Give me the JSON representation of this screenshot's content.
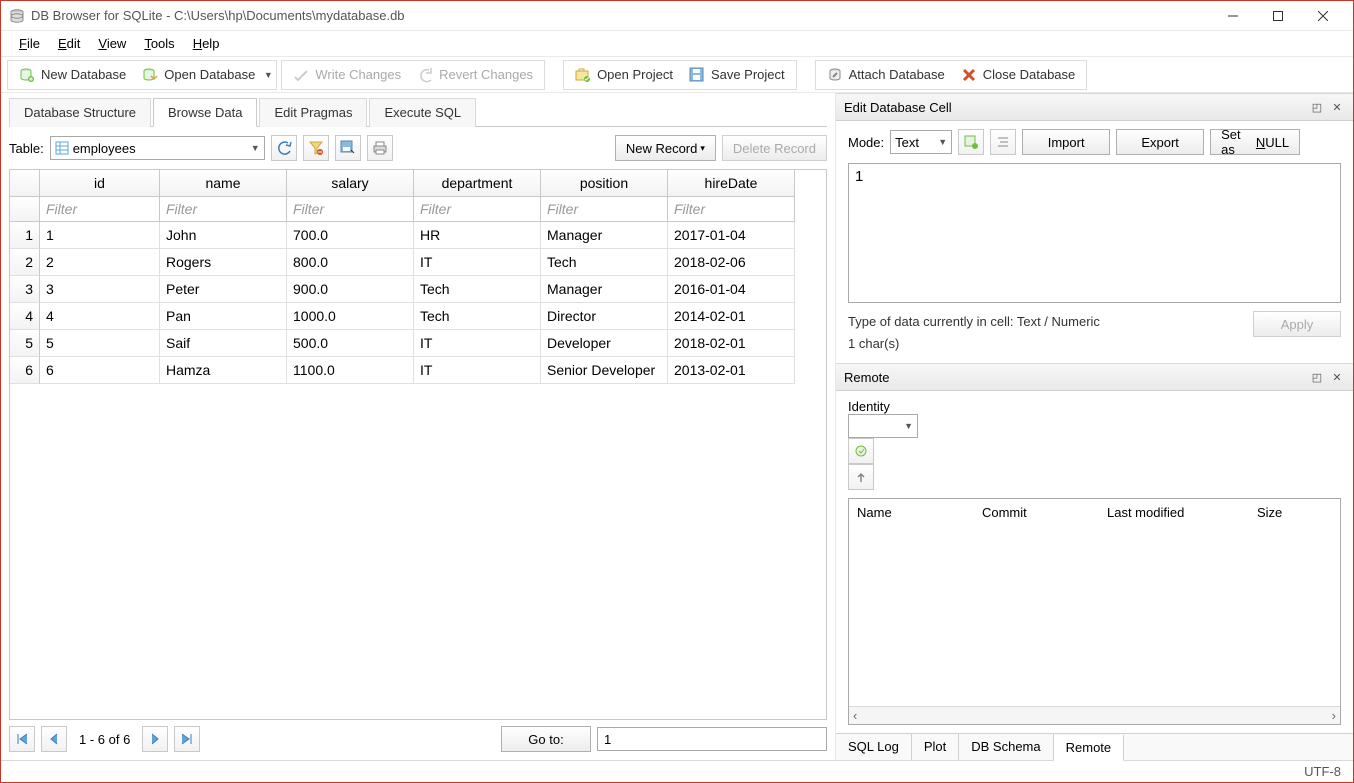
{
  "window": {
    "title": "DB Browser for SQLite - C:\\Users\\hp\\Documents\\mydatabase.db"
  },
  "menus": {
    "file": "File",
    "edit": "Edit",
    "view": "View",
    "tools": "Tools",
    "help": "Help"
  },
  "toolbar": {
    "new_db": "New Database",
    "open_db": "Open Database",
    "write_changes": "Write Changes",
    "revert_changes": "Revert Changes",
    "open_project": "Open Project",
    "save_project": "Save Project",
    "attach_db": "Attach Database",
    "close_db": "Close Database"
  },
  "tabs": {
    "structure": "Database Structure",
    "browse": "Browse Data",
    "pragmas": "Edit Pragmas",
    "sql": "Execute SQL"
  },
  "browse": {
    "table_label": "Table:",
    "table_selected": "employees",
    "new_record": "New Record",
    "delete_record": "Delete Record",
    "columns": [
      "id",
      "name",
      "salary",
      "department",
      "position",
      "hireDate"
    ],
    "filter_placeholder": "Filter",
    "rows": [
      [
        "1",
        "John",
        "700.0",
        "HR",
        "Manager",
        "2017-01-04"
      ],
      [
        "2",
        "Rogers",
        "800.0",
        "IT",
        "Tech",
        "2018-02-06"
      ],
      [
        "3",
        "Peter",
        "900.0",
        "Tech",
        "Manager",
        "2016-01-04"
      ],
      [
        "4",
        "Pan",
        "1000.0",
        "Tech",
        "Director",
        "2014-02-01"
      ],
      [
        "5",
        "Saif",
        "500.0",
        "IT",
        "Developer",
        "2018-02-01"
      ],
      [
        "6",
        "Hamza",
        "1100.0",
        "IT",
        "Senior Developer",
        "2013-02-01"
      ]
    ],
    "pager_text": "1 - 6 of 6",
    "goto_label": "Go to:",
    "goto_value": "1"
  },
  "edit_cell": {
    "title": "Edit Database Cell",
    "mode_label": "Mode:",
    "mode_value": "Text",
    "import": "Import",
    "export": "Export",
    "set_null": "Set as NULL",
    "value": "1",
    "type_text": "Type of data currently in cell: Text / Numeric",
    "chars_text": "1 char(s)",
    "apply": "Apply"
  },
  "remote": {
    "title": "Remote",
    "identity_label": "Identity",
    "columns": {
      "name": "Name",
      "commit": "Commit",
      "modified": "Last modified",
      "size": "Size"
    }
  },
  "bottom_tabs": {
    "sql_log": "SQL Log",
    "plot": "Plot",
    "schema": "DB Schema",
    "remote": "Remote"
  },
  "status": {
    "encoding": "UTF-8"
  },
  "colors": {
    "accent_green": "#6fbf3f",
    "accent_blue": "#5aa7d6",
    "disabled": "#aaaaaa",
    "red": "#d64f2a"
  }
}
